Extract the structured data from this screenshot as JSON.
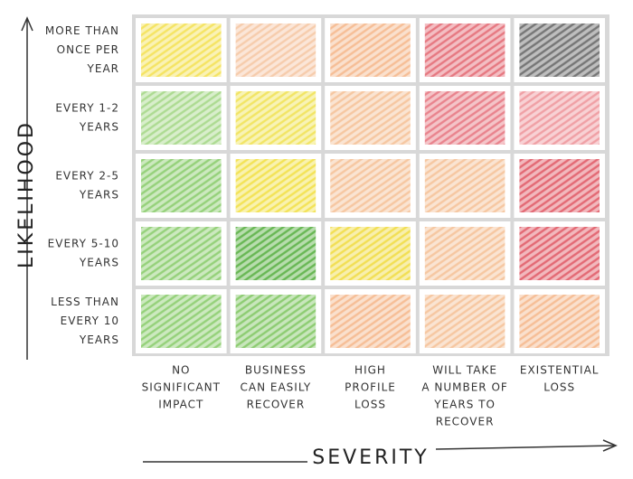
{
  "axes": {
    "y_title": "LIKELIHOOD",
    "x_title": "SEVERITY"
  },
  "rows": [
    {
      "label_lines": [
        "MORE THAN",
        "ONCE PER",
        "YEAR"
      ],
      "colors": [
        "#f4e35a",
        "#f6c9a8",
        "#f5bb90",
        "#e5707a",
        "#6e6e6e"
      ]
    },
    {
      "label_lines": [
        "EVERY 1-2",
        "YEARS"
      ],
      "colors": [
        "#a9d98c",
        "#f1e45c",
        "#f5c39c",
        "#e87c86",
        "#ef9aa0"
      ]
    },
    {
      "label_lines": [
        "EVERY 2-5",
        "YEARS"
      ],
      "colors": [
        "#8fcf72",
        "#f2e24e",
        "#f5c39c",
        "#f5c39c",
        "#e2616c"
      ]
    },
    {
      "label_lines": [
        "EVERY 5-10",
        "YEARS"
      ],
      "colors": [
        "#8fcf72",
        "#5fb34a",
        "#f1dd4a",
        "#f5c39c",
        "#e2616c"
      ]
    },
    {
      "label_lines": [
        "LESS THAN",
        "EVERY 10",
        "YEARS"
      ],
      "colors": [
        "#8fcf72",
        "#86c96a",
        "#f5bb90",
        "#f5c39c",
        "#f5bb90"
      ]
    }
  ],
  "columns": [
    {
      "label_lines": [
        "NO",
        "SIGNIFICANT",
        "IMPACT"
      ]
    },
    {
      "label_lines": [
        "BUSINESS",
        "CAN EASILY",
        "RECOVER"
      ]
    },
    {
      "label_lines": [
        "HIGH",
        "PROFILE",
        "LOSS"
      ]
    },
    {
      "label_lines": [
        "WILL TAKE",
        "A NUMBER OF",
        "YEARS TO",
        "RECOVER"
      ]
    },
    {
      "label_lines": [
        "EXISTENTIAL",
        "LOSS"
      ]
    }
  ]
}
